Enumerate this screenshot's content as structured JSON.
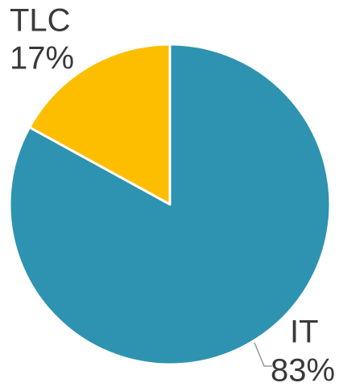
{
  "chart_data": {
    "type": "pie",
    "categories": [
      "IT",
      "TLC"
    ],
    "values": [
      83,
      17
    ],
    "value_labels": [
      "83%",
      "17%"
    ],
    "colors": [
      "#2e93b0",
      "#fdbe00"
    ]
  }
}
